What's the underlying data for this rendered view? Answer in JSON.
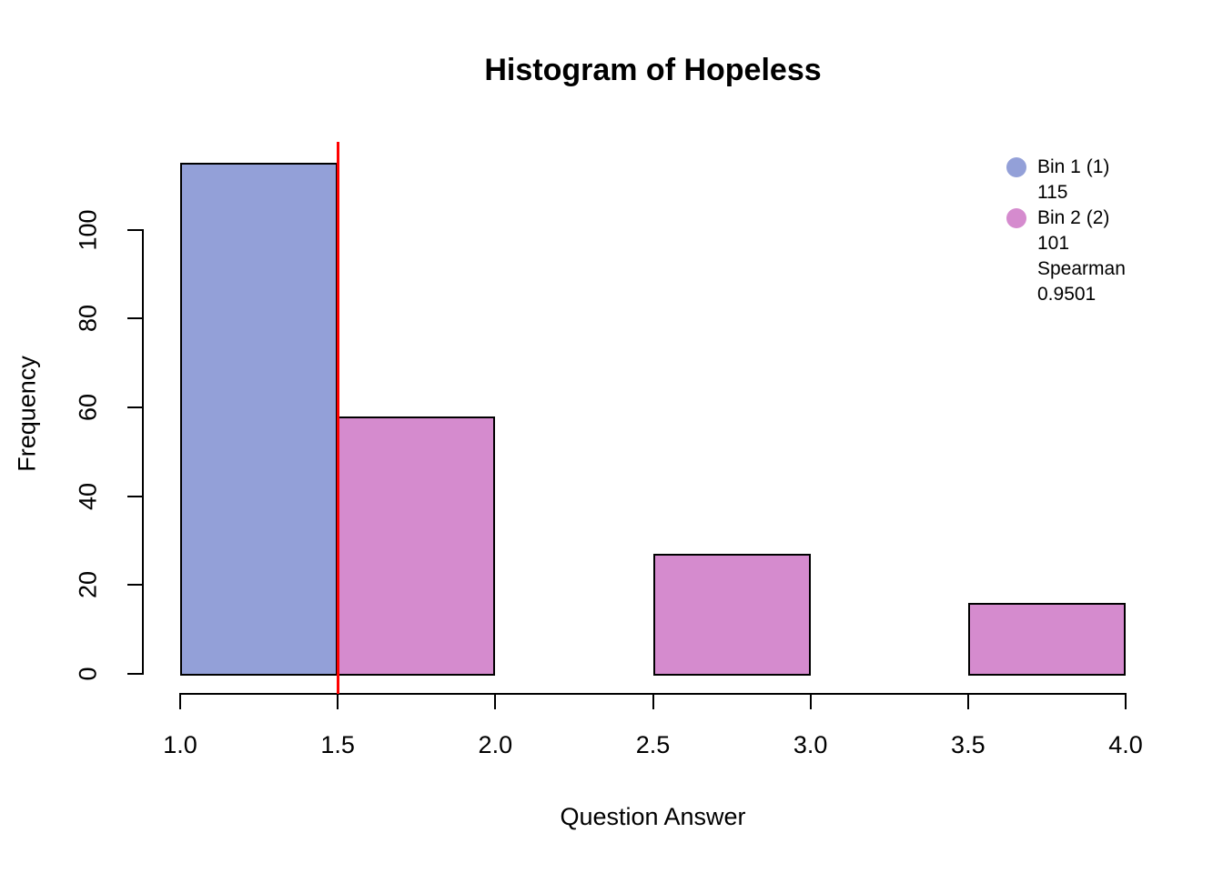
{
  "chart_data": {
    "type": "bar",
    "title": "Histogram of Hopeless",
    "xlabel": "Question Answer",
    "ylabel": "Frequency",
    "x_ticks": [
      "1.0",
      "1.5",
      "2.0",
      "2.5",
      "3.0",
      "3.5",
      "4.0"
    ],
    "y_ticks": [
      "0",
      "20",
      "40",
      "60",
      "80",
      "100"
    ],
    "xlim": [
      1.0,
      4.0
    ],
    "ylim": [
      0,
      120
    ],
    "grid": false,
    "background": "#FFFFFF",
    "axis_color": "#000000",
    "bins": [
      {
        "x0": 1.0,
        "x1": 1.5,
        "count": 115,
        "series": "Bin 1",
        "color": "#93A0D8"
      },
      {
        "x0": 1.5,
        "x1": 2.0,
        "count": 58,
        "series": "Bin 2",
        "color": "#D58BCE"
      },
      {
        "x0": 2.0,
        "x1": 2.5,
        "count": 0,
        "series": "Bin 2",
        "color": "#D58BCE"
      },
      {
        "x0": 2.5,
        "x1": 3.0,
        "count": 27,
        "series": "Bin 2",
        "color": "#D58BCE"
      },
      {
        "x0": 3.0,
        "x1": 3.5,
        "count": 0,
        "series": "Bin 2",
        "color": "#D58BCE"
      },
      {
        "x0": 3.5,
        "x1": 4.0,
        "count": 16,
        "series": "Bin 2",
        "color": "#D58BCE"
      }
    ],
    "vline": {
      "x": 1.5,
      "color": "#FF0000"
    },
    "legend": {
      "position": "top-right",
      "entries": [
        {
          "label": "Bin 1 (1)",
          "color": "#93A0D8",
          "lines": [
            "115"
          ]
        },
        {
          "label": "Bin 2 (2)",
          "color": "#D58BCE",
          "lines": [
            "101",
            "Spearman",
            "0.9501"
          ]
        }
      ]
    }
  }
}
